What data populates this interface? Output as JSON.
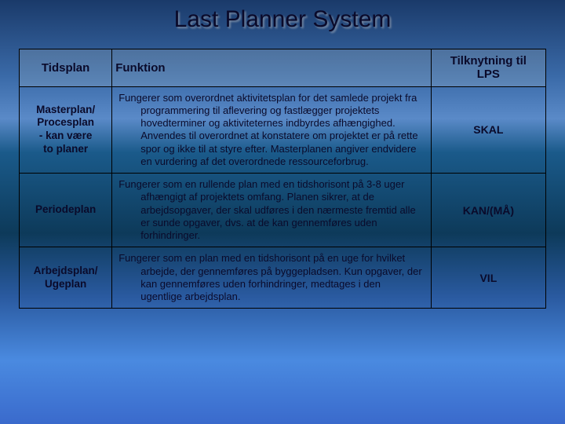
{
  "title": "Last Planner System",
  "headers": {
    "c0": "Tidsplan",
    "c1": "Funktion",
    "c2_line1": "Tilknytning til",
    "c2_line2": "LPS"
  },
  "rows": [
    {
      "plan_l1": "Masterplan/",
      "plan_l2": "Procesplan",
      "plan_l3": "- kan være",
      "plan_l4": "to planer",
      "func": "Fungerer som overordnet aktivitetsplan for det samlede projekt fra programmering til aflevering og fastlægger projektets hovedterminer og aktiviteternes indbyrdes afhængighed. Anvendes til overordnet at konstatere om projektet er på rette spor og ikke til at styre efter. Masterplanen angiver endvidere en vurdering af det overordnede ressourceforbrug.",
      "lps": "SKAL"
    },
    {
      "plan_l1": "Periodeplan",
      "plan_l2": "",
      "plan_l3": "",
      "plan_l4": "",
      "func": "Fungerer som en rullende plan med en tidshorisont på 3-8 uger afhængigt af projektets omfang. Planen sikrer, at de arbejdsopgaver, der skal udføres i den nærmeste fremtid alle er sunde opgaver, dvs. at de kan gennemføres uden forhindringer.",
      "lps": "KAN/(MÅ)"
    },
    {
      "plan_l1": "Arbejdsplan/",
      "plan_l2": "Ugeplan",
      "plan_l3": "",
      "plan_l4": "",
      "func": "Fungerer som en plan med en tidshorisont på en uge for hvilket arbejde, der gennemføres på byggepladsen. Kun opgaver, der kan gennemføres uden forhindringer, medtages i den ugentlige arbejdsplan.",
      "lps": "VIL"
    }
  ],
  "colors": {
    "text": "#0a0a2a",
    "border": "#000000"
  }
}
